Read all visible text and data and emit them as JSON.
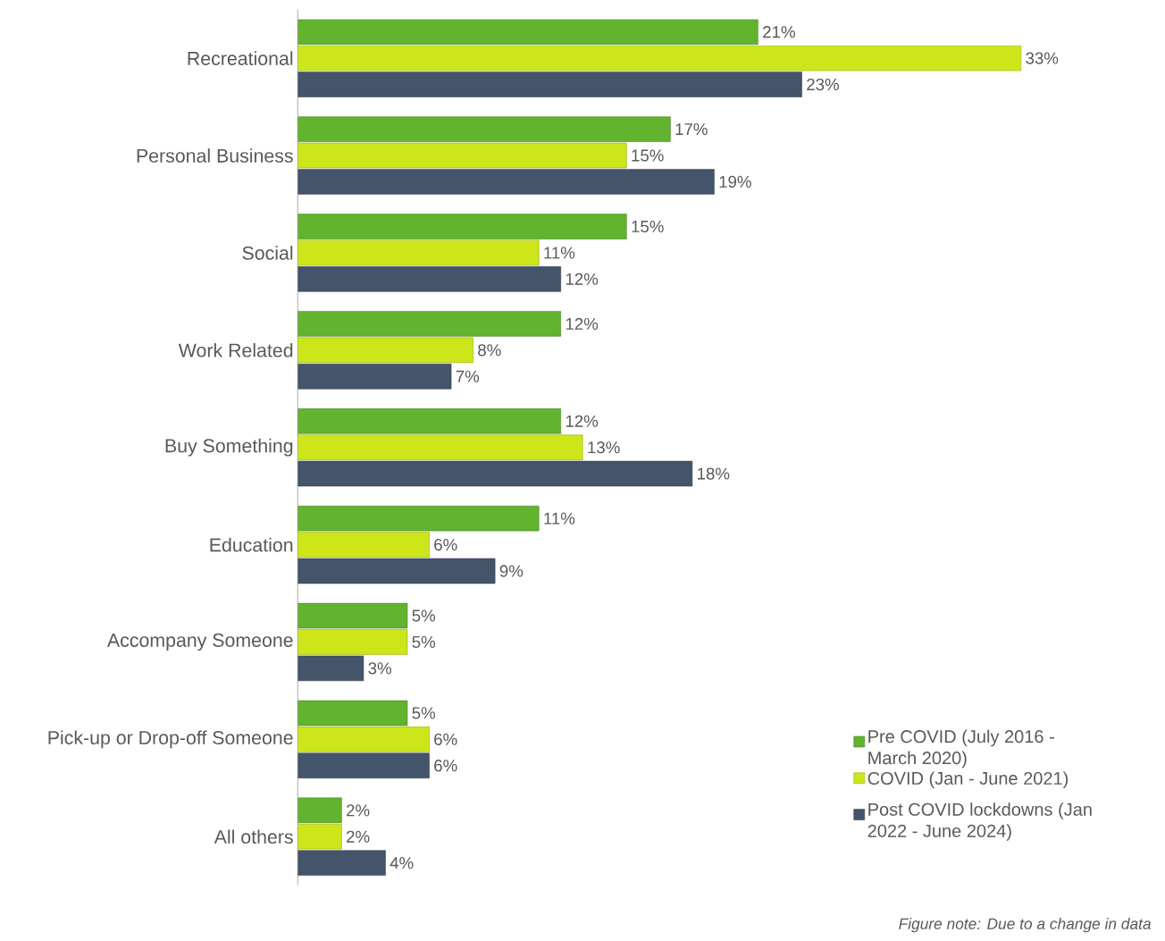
{
  "chart_data": {
    "type": "bar",
    "orientation": "horizontal",
    "categories": [
      "Recreational",
      "Personal Business",
      "Social",
      "Work Related",
      "Buy Something",
      "Education",
      "Accompany Someone",
      "Pick-up or Drop-off Someone",
      "All others"
    ],
    "series": [
      {
        "name": "Pre COVID (July 2016 - March 2020)",
        "color": "#62b32e",
        "values": [
          21,
          17,
          15,
          12,
          12,
          11,
          5,
          5,
          2
        ],
        "value_labels": [
          "21%",
          "17%",
          "15%",
          "12%",
          "12%",
          "11%",
          "5%",
          "5%",
          "2%"
        ]
      },
      {
        "name": "COVID (Jan - June 2021)",
        "color": "#cde61a",
        "values": [
          33,
          15,
          11,
          8,
          13,
          6,
          5,
          6,
          2
        ],
        "value_labels": [
          "33%",
          "15%",
          "11%",
          "8%",
          "13%",
          "6%",
          "5%",
          "6%",
          "2%"
        ]
      },
      {
        "name": "Post COVID lockdowns (Jan 2022 - June 2024)",
        "color": "#44546a",
        "values": [
          23,
          19,
          12,
          7,
          18,
          9,
          3,
          6,
          4
        ],
        "value_labels": [
          "23%",
          "19%",
          "12%",
          "7%",
          "18%",
          "9%",
          "3%",
          "6%",
          "4%"
        ]
      }
    ],
    "legend": "bottom right",
    "annotations": [
      "Figure note: Due to a change in data"
    ]
  }
}
